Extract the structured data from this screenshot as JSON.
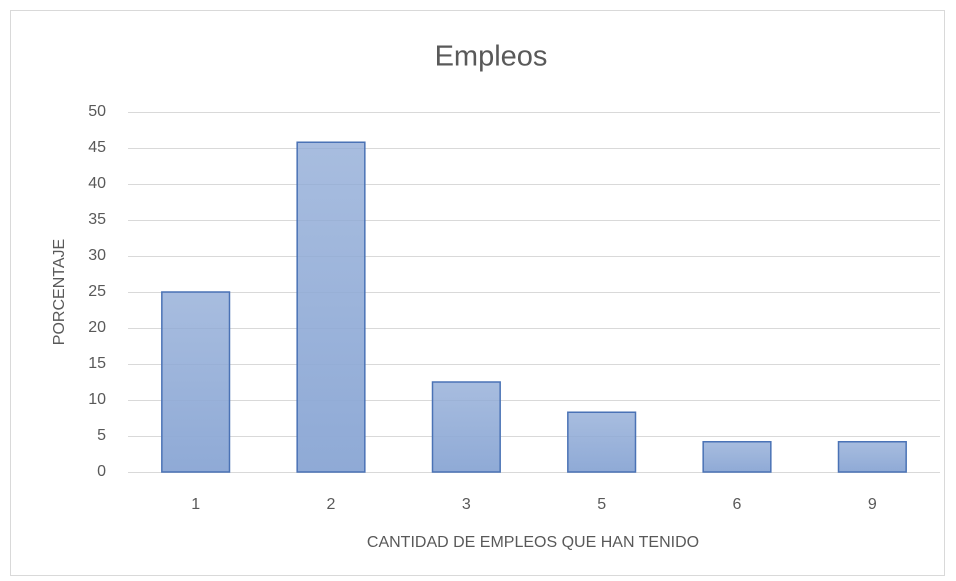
{
  "chart_data": {
    "type": "bar",
    "title": "Empleos",
    "categories": [
      "1",
      "2",
      "3",
      "5",
      "6",
      "9"
    ],
    "values": [
      25,
      45.8,
      12.5,
      8.3,
      4.2,
      4.2
    ],
    "color": "#8faad6",
    "edgecolor": "#4a72b5",
    "ylim": [
      0,
      50
    ],
    "yticks": [
      0,
      5,
      10,
      15,
      20,
      25,
      30,
      35,
      40,
      45,
      50
    ],
    "grid": true,
    "xlabel": "CANTIDAD DE EMPLEOS QUE HAN TENIDO",
    "ylabel": "PORCENTAJE"
  }
}
